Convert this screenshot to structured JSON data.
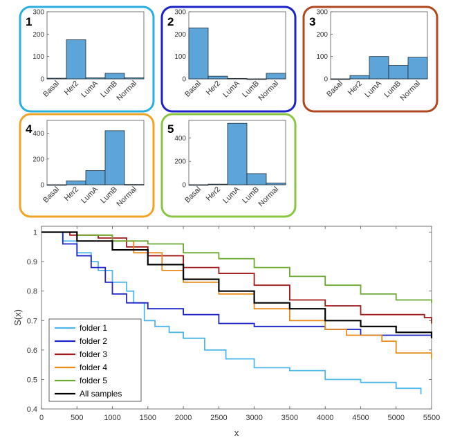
{
  "chart_data": [
    {
      "type": "bar",
      "panel_label": "1",
      "border_color": "#29aee0",
      "categories": [
        "Basal",
        "Her2",
        "LumA",
        "LumB",
        "Normal"
      ],
      "values": [
        3,
        175,
        5,
        25,
        5
      ],
      "ylim": [
        0,
        300
      ],
      "yticks": [
        "0",
        "100",
        "200",
        "300"
      ]
    },
    {
      "type": "bar",
      "panel_label": "2",
      "border_color": "#1a22c8",
      "categories": [
        "Basal",
        "Her2",
        "LumA",
        "LumB",
        "Normal"
      ],
      "values": [
        228,
        12,
        2,
        0,
        25
      ],
      "ylim": [
        0,
        300
      ],
      "yticks": [
        "0",
        "100",
        "200",
        "300"
      ]
    },
    {
      "type": "bar",
      "panel_label": "3",
      "border_color": "#b0471e",
      "categories": [
        "Basal",
        "Her2",
        "LumA",
        "LumB",
        "Normal"
      ],
      "values": [
        0,
        15,
        100,
        60,
        97
      ],
      "ylim": [
        0,
        300
      ],
      "yticks": [
        "0",
        "100",
        "200",
        "300"
      ]
    },
    {
      "type": "bar",
      "panel_label": "4",
      "border_color": "#f0a326",
      "categories": [
        "Basal",
        "Her2",
        "LumA",
        "LumB",
        "Normal"
      ],
      "values": [
        0,
        30,
        110,
        420,
        2
      ],
      "ylim": [
        0,
        500
      ],
      "yticks": [
        "0",
        "200",
        "400"
      ]
    },
    {
      "type": "bar",
      "panel_label": "5",
      "border_color": "#8ac640",
      "categories": [
        "Basal",
        "Her2",
        "LumA",
        "LumB",
        "Normal"
      ],
      "values": [
        0,
        5,
        525,
        95,
        15
      ],
      "ylim": [
        0,
        550
      ],
      "yticks": [
        "0",
        "200",
        "400"
      ]
    },
    {
      "type": "line",
      "step": true,
      "xlabel": "x",
      "ylabel": "S(x)",
      "xlim": [
        0,
        5500
      ],
      "ylim": [
        0.4,
        1.02
      ],
      "xticks": [
        "0",
        "500",
        "1000",
        "1500",
        "2000",
        "2500",
        "3000",
        "3500",
        "4000",
        "4500",
        "5000",
        "5500"
      ],
      "yticks": [
        "0.4",
        "0.5",
        "0.6",
        "0.7",
        "0.8",
        "0.9",
        "1"
      ],
      "legend_position": "bottom-left",
      "series": [
        {
          "name": "folder 1",
          "color": "#4db8e8",
          "points": [
            [
              0,
              1
            ],
            [
              300,
              0.97
            ],
            [
              500,
              0.93
            ],
            [
              700,
              0.9
            ],
            [
              800,
              0.87
            ],
            [
              1000,
              0.83
            ],
            [
              1200,
              0.8
            ],
            [
              1300,
              0.76
            ],
            [
              1450,
              0.7
            ],
            [
              1600,
              0.68
            ],
            [
              1800,
              0.66
            ],
            [
              2000,
              0.64
            ],
            [
              2300,
              0.6
            ],
            [
              2600,
              0.57
            ],
            [
              3000,
              0.54
            ],
            [
              3500,
              0.53
            ],
            [
              4000,
              0.5
            ],
            [
              4500,
              0.49
            ],
            [
              5000,
              0.47
            ],
            [
              5350,
              0.45
            ]
          ]
        },
        {
          "name": "folder 2",
          "color": "#1a22c8",
          "points": [
            [
              0,
              1
            ],
            [
              300,
              0.96
            ],
            [
              500,
              0.92
            ],
            [
              700,
              0.88
            ],
            [
              900,
              0.83
            ],
            [
              1000,
              0.79
            ],
            [
              1200,
              0.76
            ],
            [
              1500,
              0.74
            ],
            [
              2000,
              0.72
            ],
            [
              2500,
              0.69
            ],
            [
              3000,
              0.68
            ],
            [
              4000,
              0.67
            ],
            [
              4500,
              0.65
            ],
            [
              5500,
              0.64
            ]
          ]
        },
        {
          "name": "folder 3",
          "color": "#a01818",
          "points": [
            [
              0,
              1
            ],
            [
              400,
              0.99
            ],
            [
              800,
              0.98
            ],
            [
              1200,
              0.95
            ],
            [
              1500,
              0.92
            ],
            [
              2000,
              0.88
            ],
            [
              2500,
              0.86
            ],
            [
              3000,
              0.82
            ],
            [
              3500,
              0.77
            ],
            [
              4000,
              0.75
            ],
            [
              4500,
              0.72
            ],
            [
              5400,
              0.71
            ],
            [
              5500,
              0.69
            ]
          ]
        },
        {
          "name": "folder 4",
          "color": "#ec8a18",
          "points": [
            [
              0,
              1
            ],
            [
              500,
              0.99
            ],
            [
              1000,
              0.97
            ],
            [
              1300,
              0.93
            ],
            [
              1700,
              0.87
            ],
            [
              2000,
              0.83
            ],
            [
              2500,
              0.79
            ],
            [
              3000,
              0.74
            ],
            [
              3500,
              0.7
            ],
            [
              4000,
              0.67
            ],
            [
              4300,
              0.65
            ],
            [
              4800,
              0.63
            ],
            [
              5000,
              0.59
            ],
            [
              5500,
              0.57
            ]
          ]
        },
        {
          "name": "folder 5",
          "color": "#6aa832",
          "points": [
            [
              0,
              1
            ],
            [
              500,
              0.99
            ],
            [
              1000,
              0.97
            ],
            [
              1500,
              0.96
            ],
            [
              2000,
              0.93
            ],
            [
              2500,
              0.91
            ],
            [
              3000,
              0.88
            ],
            [
              3500,
              0.85
            ],
            [
              4000,
              0.82
            ],
            [
              4500,
              0.79
            ],
            [
              5000,
              0.77
            ],
            [
              5500,
              0.76
            ]
          ]
        },
        {
          "name": "All samples",
          "color": "#000000",
          "points": [
            [
              0,
              1
            ],
            [
              500,
              0.97
            ],
            [
              1000,
              0.94
            ],
            [
              1500,
              0.89
            ],
            [
              2000,
              0.84
            ],
            [
              2500,
              0.8
            ],
            [
              3000,
              0.76
            ],
            [
              3500,
              0.74
            ],
            [
              4000,
              0.7
            ],
            [
              4500,
              0.68
            ],
            [
              5000,
              0.66
            ],
            [
              5500,
              0.64
            ]
          ]
        }
      ]
    }
  ]
}
